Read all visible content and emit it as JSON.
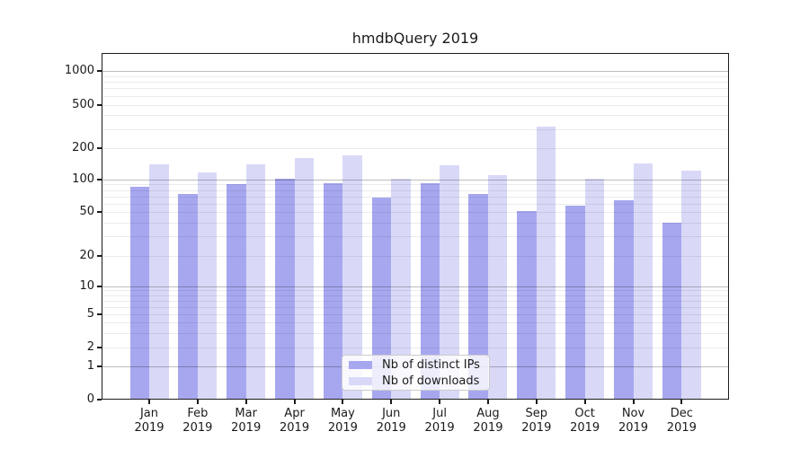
{
  "title": "hmdbQuery 2019",
  "colors": {
    "distinct_ips_bar": "#a7a7f0",
    "downloads_bar": "#d9d9f7",
    "major_grid": "#c2c2c2",
    "minor_grid": "#ebebeb",
    "frame": "#1c1c1c"
  },
  "y_axis": {
    "tick_labels": [
      "0",
      "1",
      "2",
      "5",
      "10",
      "20",
      "50",
      "100",
      "200",
      "500",
      "1000"
    ]
  },
  "x_axis": {
    "months": [
      "Jan",
      "Feb",
      "Mar",
      "Apr",
      "May",
      "Jun",
      "Jul",
      "Aug",
      "Sep",
      "Oct",
      "Nov",
      "Dec"
    ],
    "year": "2019"
  },
  "legend": {
    "items": [
      {
        "label": "Nb of distinct IPs",
        "color": "#a7a7f0"
      },
      {
        "label": "Nb of downloads",
        "color": "#d9d9f7"
      }
    ]
  },
  "chart_data": {
    "type": "bar",
    "title": "hmdbQuery 2019",
    "categories": [
      "Jan 2019",
      "Feb 2019",
      "Mar 2019",
      "Apr 2019",
      "May 2019",
      "Jun 2019",
      "Jul 2019",
      "Aug 2019",
      "Sep 2019",
      "Oct 2019",
      "Nov 2019",
      "Dec 2019"
    ],
    "series": [
      {
        "name": "Nb of distinct IPs",
        "color": "#a7a7f0",
        "values": [
          85,
          73,
          90,
          101,
          92,
          68,
          93,
          73,
          51,
          57,
          64,
          40
        ]
      },
      {
        "name": "Nb of downloads",
        "color": "#d9d9f7",
        "values": [
          140,
          117,
          140,
          160,
          170,
          102,
          138,
          111,
          315,
          102,
          142,
          121
        ]
      }
    ],
    "y_scale": "log-like with 1-2-5 labeled ticks and a linear 0-1 segment",
    "y_ticks": [
      0,
      1,
      2,
      5,
      10,
      20,
      50,
      100,
      200,
      500,
      1000
    ],
    "ylim": [
      0,
      1500
    ],
    "grid": "horizontal, major lines at powers of 10, faint minor lines at 2-9 per decade",
    "legend_position": "lower center, inside plot"
  }
}
